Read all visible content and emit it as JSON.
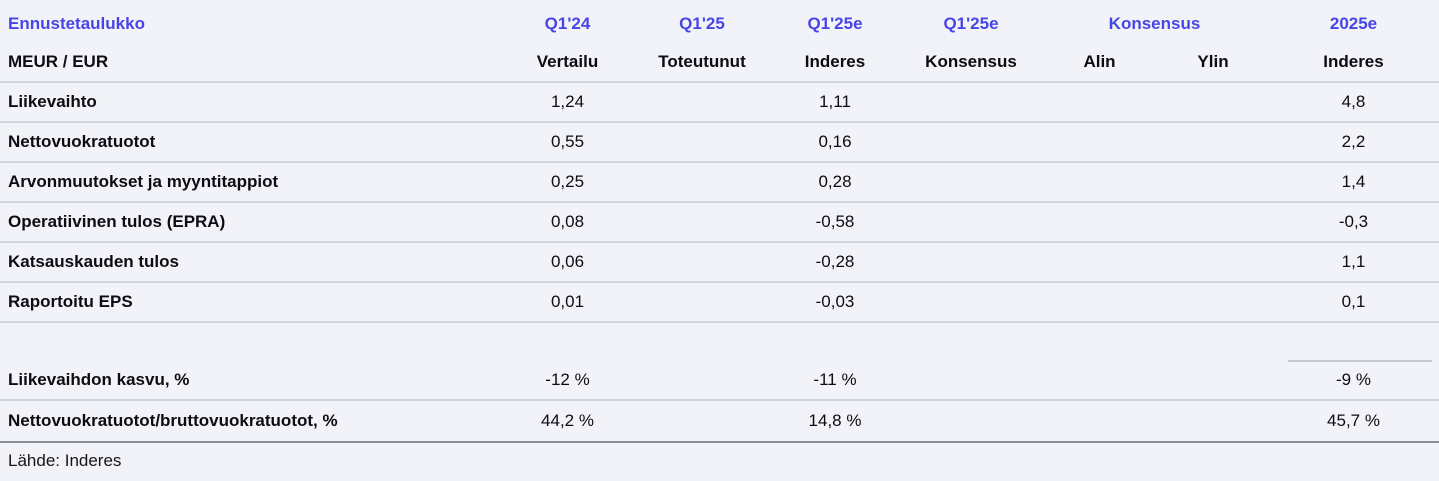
{
  "page": {
    "background_color": "#f2f3f8",
    "accent_blue": "#4845e6",
    "separator_color": "#d3d5de",
    "dark_rule_color": "#8e8f95"
  },
  "table": {
    "title": "Ennustetaulukko",
    "unit_label": "MEUR / EUR",
    "header_top": {
      "q1_24": "Q1'24",
      "q1_25": "Q1'25",
      "q1_25e_inderes": "Q1'25e",
      "q1_25e_konsensus": "Q1'25e",
      "konsensus_group": "Konsensus",
      "y2025e": "2025e"
    },
    "header_sub": {
      "vertailu": "Vertailu",
      "toteutunut": "Toteutunut",
      "inderes": "Inderes",
      "konsensus": "Konsensus",
      "alin": "Alin",
      "ylin": "Ylin",
      "inderes_2025": "Inderes"
    },
    "rows": [
      {
        "label": "Liikevaihto",
        "cells": [
          "1,24",
          "",
          "1,11",
          "",
          "",
          "",
          "4,8"
        ]
      },
      {
        "label": "Nettovuokratuotot",
        "cells": [
          "0,55",
          "",
          "0,16",
          "",
          "",
          "",
          "2,2"
        ]
      },
      {
        "label": "Arvonmuutokset ja myyntitappiot",
        "cells": [
          "0,25",
          "",
          "0,28",
          "",
          "",
          "",
          "1,4"
        ]
      },
      {
        "label": "Operatiivinen tulos (EPRA)",
        "cells": [
          "0,08",
          "",
          "-0,58",
          "",
          "",
          "",
          "-0,3"
        ]
      },
      {
        "label": "Katsauskauden tulos",
        "cells": [
          "0,06",
          "",
          "-0,28",
          "",
          "",
          "",
          "1,1"
        ]
      },
      {
        "label": "Raportoitu EPS",
        "cells": [
          "0,01",
          "",
          "-0,03",
          "",
          "",
          "",
          "0,1"
        ]
      },
      {
        "label": "Liikevaihdon kasvu, %",
        "cells": [
          "-12 %",
          "",
          "-11 %",
          "",
          "",
          "",
          "-9 %"
        ]
      },
      {
        "label": "Nettovuokratuotot/bruttovuokratuotot, %",
        "cells": [
          "44,2 %",
          "",
          "14,8 %",
          "",
          "",
          "",
          "45,7 %"
        ]
      }
    ],
    "source": "Lähde: Inderes"
  },
  "chart_data": {
    "type": "table",
    "title": "Ennustetaulukko",
    "unit": "MEUR / EUR",
    "columns": [
      "Q1'24 Vertailu",
      "Q1'25 Toteutunut",
      "Q1'25e Inderes",
      "Q1'25e Konsensus",
      "Konsensus Alin",
      "Konsensus Ylin",
      "2025e Inderes"
    ],
    "rows": [
      {
        "label": "Liikevaihto",
        "values": [
          1.24,
          null,
          1.11,
          null,
          null,
          null,
          4.8
        ]
      },
      {
        "label": "Nettovuokratuotot",
        "values": [
          0.55,
          null,
          0.16,
          null,
          null,
          null,
          2.2
        ]
      },
      {
        "label": "Arvonmuutokset ja myyntitappiot",
        "values": [
          0.25,
          null,
          0.28,
          null,
          null,
          null,
          1.4
        ]
      },
      {
        "label": "Operatiivinen tulos (EPRA)",
        "values": [
          0.08,
          null,
          -0.58,
          null,
          null,
          null,
          -0.3
        ]
      },
      {
        "label": "Katsauskauden tulos",
        "values": [
          0.06,
          null,
          -0.28,
          null,
          null,
          null,
          1.1
        ]
      },
      {
        "label": "Raportoitu EPS",
        "values": [
          0.01,
          null,
          -0.03,
          null,
          null,
          null,
          0.1
        ]
      },
      {
        "label": "Liikevaihdon kasvu, %",
        "values": [
          -12,
          null,
          -11,
          null,
          null,
          null,
          -9
        ]
      },
      {
        "label": "Nettovuokratuotot/bruttovuokratuotot, %",
        "values": [
          44.2,
          null,
          14.8,
          null,
          null,
          null,
          45.7
        ]
      }
    ],
    "source": "Lähde: Inderes"
  }
}
